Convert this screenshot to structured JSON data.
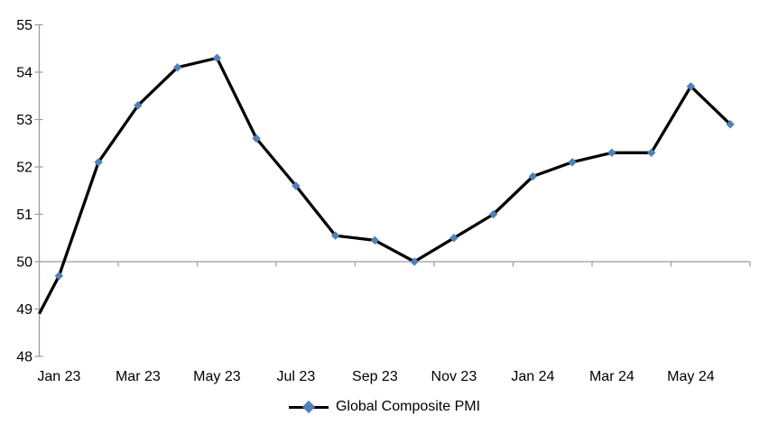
{
  "chart_data": {
    "type": "line",
    "title": "",
    "xlabel": "",
    "ylabel": "",
    "ylim": [
      48,
      55
    ],
    "y_ticks": [
      48,
      49,
      50,
      51,
      52,
      53,
      54,
      55
    ],
    "x_tick_labels": [
      "Jan 23",
      "Mar 23",
      "May 23",
      "Jul 23",
      "Sep 23",
      "Nov 23",
      "Jan 24",
      "Mar 24",
      "May 24"
    ],
    "x_label_every": 2,
    "category_axis_crosses_at": 50,
    "grid": "none (only category axis line at 50)",
    "legend_position": "bottom-center",
    "axis_color": "#9b9b9b",
    "background_color": "#ffffff",
    "series": [
      {
        "name": "Global Composite PMI",
        "line_color": "#000000",
        "marker": "diamond",
        "marker_color": "#4f81bd",
        "x": [
          "Jan 23",
          "Feb 23",
          "Mar 23",
          "Apr 23",
          "May 23",
          "Jun 23",
          "Jul 23",
          "Aug 23",
          "Sep 23",
          "Oct 23",
          "Nov 23",
          "Dec 23",
          "Jan 24",
          "Feb 24",
          "Mar 24",
          "Apr 24",
          "May 24",
          "Jun 24"
        ],
        "values": [
          49.7,
          52.1,
          53.3,
          54.1,
          54.3,
          52.6,
          51.6,
          50.55,
          50.45,
          50.0,
          50.5,
          51.0,
          51.8,
          52.1,
          52.3,
          52.3,
          53.7,
          52.9
        ],
        "line_enters_left_edge_at": 48.9
      }
    ],
    "legend": {
      "label": "Global Composite PMI"
    }
  }
}
